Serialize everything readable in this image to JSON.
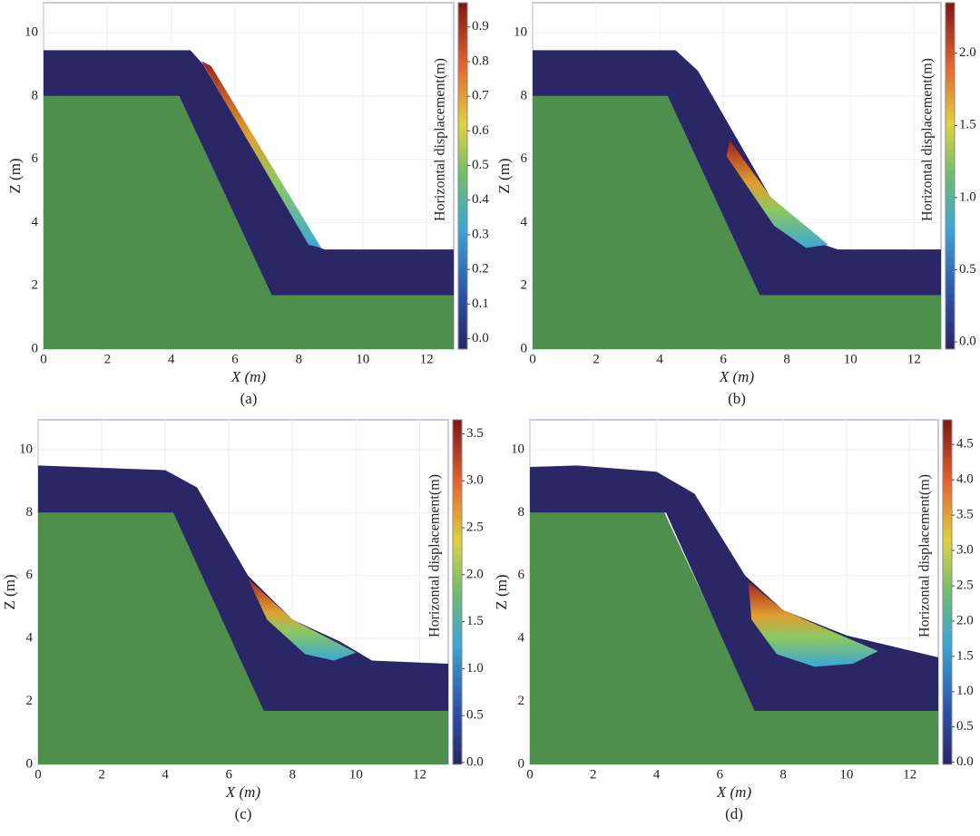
{
  "chart_data": [
    {
      "type": "field",
      "caption": "(a)",
      "xlabel": "X (m)",
      "ylabel": "Z (m)",
      "colorbar_label": "Horizontal displacement(m)",
      "xlim": [
        0,
        12.85
      ],
      "ylim": [
        0,
        10.95
      ],
      "xticks": [
        0,
        2,
        4,
        6,
        8,
        10,
        12
      ],
      "yticks": [
        0,
        2,
        4,
        6,
        8,
        10
      ],
      "clim": [
        -0.03,
        0.97
      ],
      "cticks": [
        {
          "value": 0,
          "label": "0.0"
        },
        0.1,
        0.2,
        0.3,
        0.4,
        0.5,
        0.6,
        0.7,
        0.8,
        0.9
      ]
    },
    {
      "type": "field",
      "caption": "(b)",
      "xlabel": "X (m)",
      "ylabel": "Z (m)",
      "colorbar_label": "Horizontal displacement(m)",
      "xlim": [
        0,
        12.85
      ],
      "ylim": [
        0,
        10.95
      ],
      "xticks": [
        0,
        2,
        4,
        6,
        8,
        10,
        12
      ],
      "yticks": [
        0,
        2,
        4,
        6,
        8,
        10
      ],
      "clim": [
        -0.05,
        2.35
      ],
      "cticks": [
        {
          "value": 0,
          "label": "0.0"
        },
        0.5,
        {
          "value": 1,
          "label": "1.0"
        },
        1.5,
        {
          "value": 2,
          "label": "2.0"
        }
      ]
    },
    {
      "type": "field",
      "caption": "(c)",
      "xlabel": "X (m)",
      "ylabel": "Z (m)",
      "colorbar_label": "Horizontal displacement(m)",
      "xlim": [
        0,
        12.9
      ],
      "ylim": [
        0,
        10.95
      ],
      "xticks": [
        0,
        2,
        4,
        6,
        8,
        10,
        12
      ],
      "yticks": [
        0,
        2,
        4,
        6,
        8,
        10
      ],
      "clim": [
        -0.02,
        3.65
      ],
      "cticks": [
        {
          "value": 0,
          "label": "0.0"
        },
        0.5,
        {
          "value": 1,
          "label": "1.0"
        },
        1.5,
        {
          "value": 2,
          "label": "2.0"
        },
        2.5,
        {
          "value": 3,
          "label": "3.0"
        },
        3.5
      ]
    },
    {
      "type": "field",
      "caption": "(d)",
      "xlabel": "X (m)",
      "ylabel": "Z (m)",
      "colorbar_label": "Horizontal displacement(m)",
      "xlim": [
        0,
        12.9
      ],
      "ylim": [
        0,
        10.95
      ],
      "xticks": [
        0,
        2,
        4,
        6,
        8,
        10,
        12
      ],
      "yticks": [
        0,
        2,
        4,
        6,
        8,
        10
      ],
      "clim": [
        -0.03,
        4.85
      ],
      "cticks": [
        {
          "value": 0,
          "label": "0.0"
        },
        0.5,
        {
          "value": 1,
          "label": "1.0"
        },
        1.5,
        {
          "value": 2,
          "label": "2.0"
        },
        2.5,
        {
          "value": 3,
          "label": "3.0"
        },
        3.5,
        {
          "value": 4,
          "label": "4.0"
        },
        4.5
      ]
    }
  ]
}
